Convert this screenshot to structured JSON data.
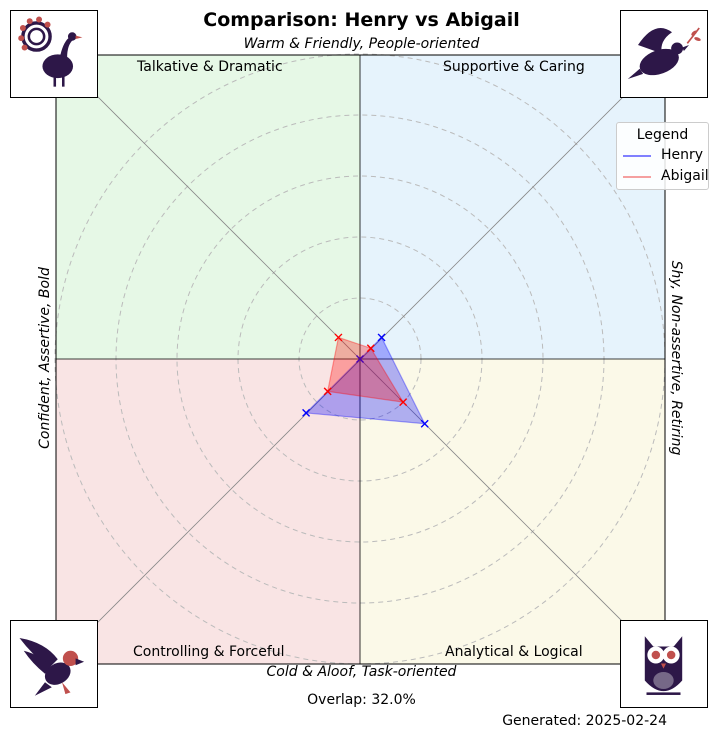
{
  "chart_data": {
    "type": "radar",
    "title": "Comparison: Henry vs Abigail",
    "axes": {
      "top": "Warm & Friendly, People-oriented",
      "bottom": "Cold & Aloof, Task-oriented",
      "left": "Confident, Assertive, Bold",
      "right": "Shy, Non-assertive, Retiring"
    },
    "quadrants": [
      {
        "name": "Talkative & Dramatic",
        "position": "top-left",
        "color": "#e6f8e6",
        "icon": "peacock-icon"
      },
      {
        "name": "Supportive & Caring",
        "position": "top-right",
        "color": "#e6f3fc",
        "icon": "dove-icon"
      },
      {
        "name": "Controlling & Forceful",
        "position": "bottom-left",
        "color": "#f9e4e4",
        "icon": "eagle-icon"
      },
      {
        "name": "Analytical & Logical",
        "position": "bottom-right",
        "color": "#fbf9e8",
        "icon": "owl-icon"
      }
    ],
    "rings": 5,
    "range": [
      0,
      10
    ],
    "series": [
      {
        "name": "Henry",
        "color": "#0000ff",
        "values": {
          "top-right": 1.0,
          "bottom-right": 3.0,
          "bottom-left": 2.5,
          "top-left": 0.0
        }
      },
      {
        "name": "Abigail",
        "color": "#ff0000",
        "values": {
          "top-right": 0.5,
          "bottom-right": 2.0,
          "bottom-left": 1.5,
          "top-left": 1.0
        }
      }
    ],
    "legend": {
      "title": "Legend",
      "placement": "top-right"
    },
    "grid": true
  },
  "overlap_text": "Overlap: 32.0%",
  "generated_text": "Generated: 2025-02-24",
  "colors": {
    "grid": "#bbbbbb",
    "diagonal": "#888888",
    "icon_ink": "#2d1748",
    "icon_accent": "#c0504d"
  }
}
